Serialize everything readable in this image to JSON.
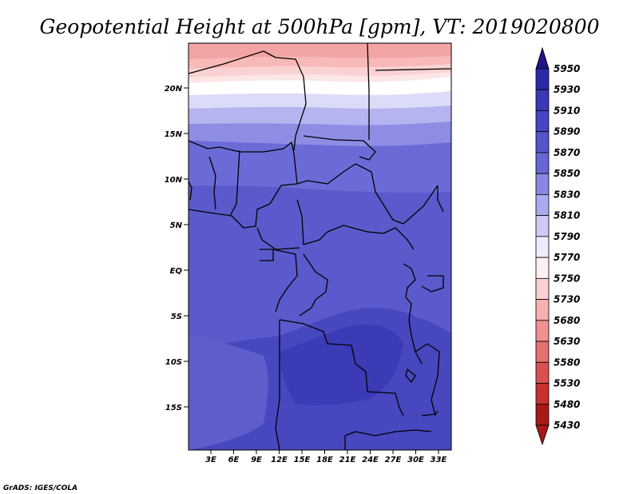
{
  "title": "Geopotential Height at 500hPa [gpm], VT: 2019020800",
  "credit": "GrADS: IGES/COLA",
  "map": {
    "lat_labels": [
      "20N",
      "15N",
      "10N",
      "5N",
      "EQ",
      "5S",
      "10S",
      "15S"
    ],
    "lon_labels": [
      "3E",
      "6E",
      "9E",
      "12E",
      "15E",
      "18E",
      "21E",
      "24E",
      "27E",
      "30E",
      "33E"
    ]
  },
  "colorbar": {
    "labels": [
      "5950",
      "5930",
      "5910",
      "5890",
      "5870",
      "5850",
      "5830",
      "5810",
      "5790",
      "5770",
      "5750",
      "5730",
      "5680",
      "5630",
      "5580",
      "5530",
      "5480",
      "5430"
    ],
    "colors": [
      "#1e1488",
      "#2a2aa6",
      "#3838b8",
      "#4545c4",
      "#5555cc",
      "#6666d6",
      "#8888e4",
      "#aaaaee",
      "#ccccf6",
      "#ececfc",
      "#fff0f0",
      "#fcd0d0",
      "#f8b0b0",
      "#f09090",
      "#e47070",
      "#d85050",
      "#c83030",
      "#a81818"
    ]
  }
}
